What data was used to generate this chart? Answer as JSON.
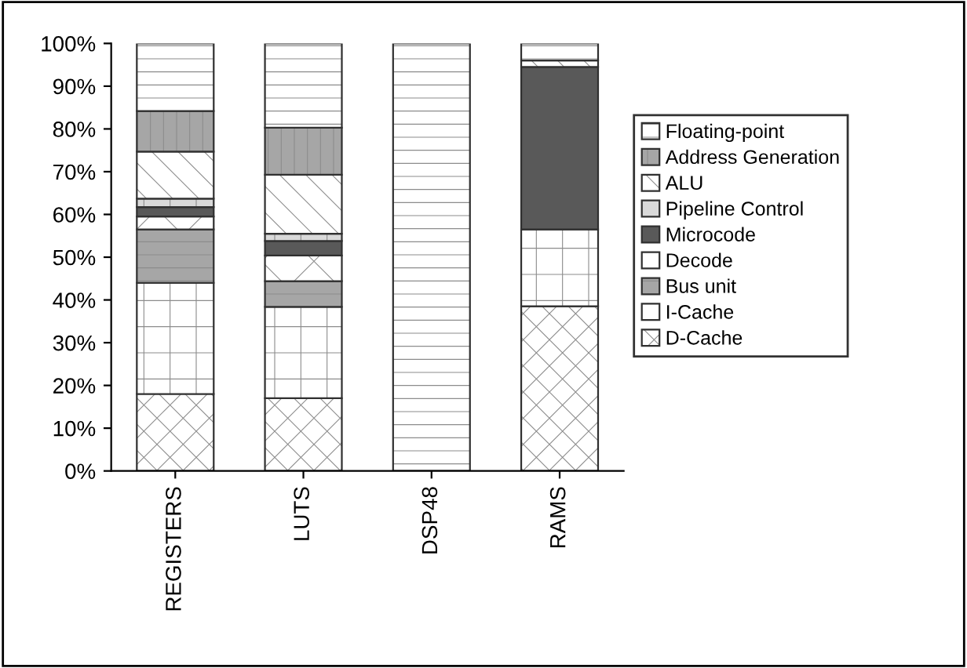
{
  "chart_data": {
    "type": "bar",
    "stacked": true,
    "categories": [
      "REGISTERS",
      "LUTS",
      "DSP48",
      "RAMS"
    ],
    "series": [
      {
        "name": "D-Cache",
        "color": "#ffffff",
        "values": [
          18,
          17,
          0,
          38.5
        ]
      },
      {
        "name": "I-Cache",
        "color": "#ffffff",
        "values": [
          26,
          21.4,
          0,
          18
        ]
      },
      {
        "name": "Bus unit",
        "color": "#a6a6a6",
        "values": [
          12.5,
          6,
          0,
          0
        ]
      },
      {
        "name": "Decode",
        "color": "#ffffff",
        "values": [
          3,
          6,
          0,
          0
        ]
      },
      {
        "name": "Microcode",
        "color": "#595959",
        "values": [
          2.2,
          3.4,
          0,
          38
        ]
      },
      {
        "name": "Pipeline Control",
        "color": "#d9d9d9",
        "values": [
          2,
          1.7,
          0,
          0
        ]
      },
      {
        "name": "ALU",
        "color": "#ffffff",
        "values": [
          11,
          13.8,
          0,
          1.5
        ]
      },
      {
        "name": "Address Generation",
        "color": "#a6a6a6",
        "values": [
          9.5,
          11,
          0,
          0
        ]
      },
      {
        "name": "Floating-point",
        "color": "#ffffff",
        "values": [
          15.8,
          19.7,
          100,
          4
        ]
      }
    ],
    "ylim": [
      0,
      100
    ],
    "yticks": [
      {
        "value": 0,
        "label": "0%"
      },
      {
        "value": 10,
        "label": "10%"
      },
      {
        "value": 20,
        "label": "20%"
      },
      {
        "value": 30,
        "label": "30%"
      },
      {
        "value": 40,
        "label": "40%"
      },
      {
        "value": 50,
        "label": "50%"
      },
      {
        "value": 60,
        "label": "60%"
      },
      {
        "value": 70,
        "label": "70%"
      },
      {
        "value": 80,
        "label": "80%"
      },
      {
        "value": 90,
        "label": "90%"
      },
      {
        "value": 100,
        "label": "100%"
      }
    ],
    "legend": "right",
    "grid": false
  }
}
